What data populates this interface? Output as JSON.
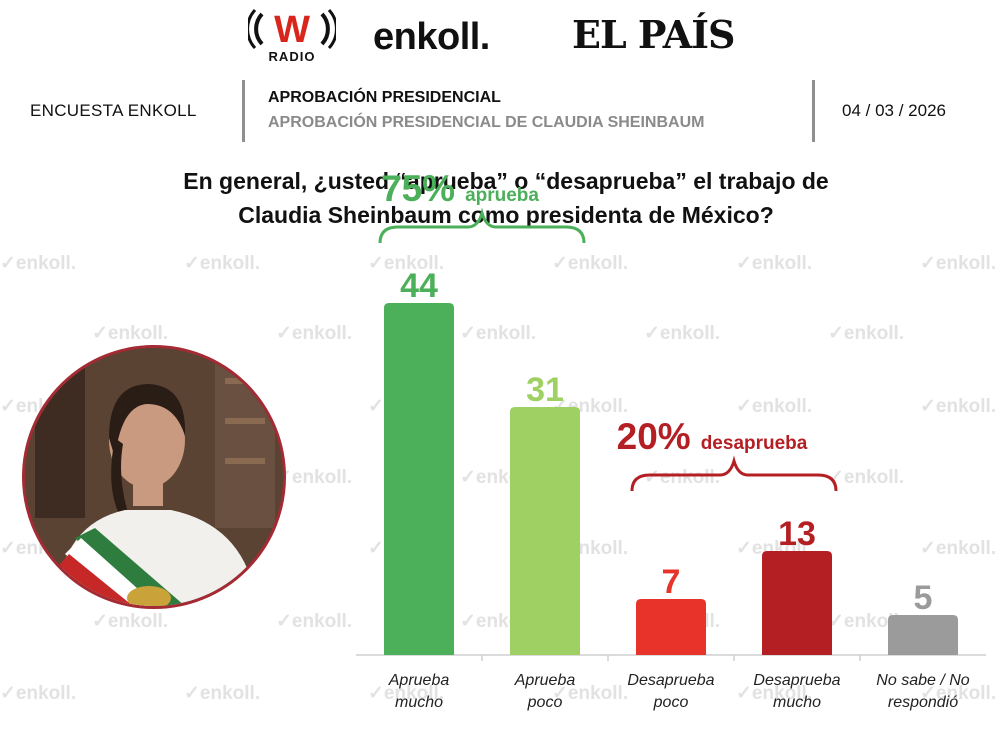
{
  "logos": {
    "wradio_word": "RADIO",
    "enkoll": "enkoll.",
    "elpais": "EL PAÍS"
  },
  "header": {
    "left": "ENCUESTA ENKOLL",
    "title": "APROBACIÓN PRESIDENCIAL",
    "subtitle": "APROBACIÓN PRESIDENCIAL DE CLAUDIA SHEINBAUM",
    "date": "04 / 03 / 2026"
  },
  "question": {
    "line1": "En general, ¿usted “aprueba” o “desaprueba” el trabajo de",
    "line2": "Claudia Sheinbaum como presidenta de México?"
  },
  "watermark": "enkoll.",
  "colors": {
    "aprueba_mucho": "#4caf5a",
    "aprueba_poco": "#9fd063",
    "desaprueba_poco": "#e8332b",
    "desaprueba_mucho": "#b41f24",
    "no_sabe": "#9b9b9b",
    "approve_group": "#4caf5a",
    "disapprove_group": "#b41f24"
  },
  "chart_data": {
    "type": "bar",
    "categories": [
      [
        "Aprueba",
        "mucho"
      ],
      [
        "Aprueba",
        "poco"
      ],
      [
        "Desaprueba",
        "poco"
      ],
      [
        "Desaprueba",
        "mucho"
      ],
      [
        "No sabe / No",
        "respondió"
      ]
    ],
    "values": [
      44,
      31,
      7,
      13,
      5
    ],
    "groups": [
      {
        "pct": "75%",
        "word": "aprueba",
        "members": [
          0,
          1
        ]
      },
      {
        "pct": "20%",
        "word": "desaprueba",
        "members": [
          2,
          3
        ]
      }
    ],
    "ylim": [
      0,
      50
    ],
    "grid": false
  }
}
